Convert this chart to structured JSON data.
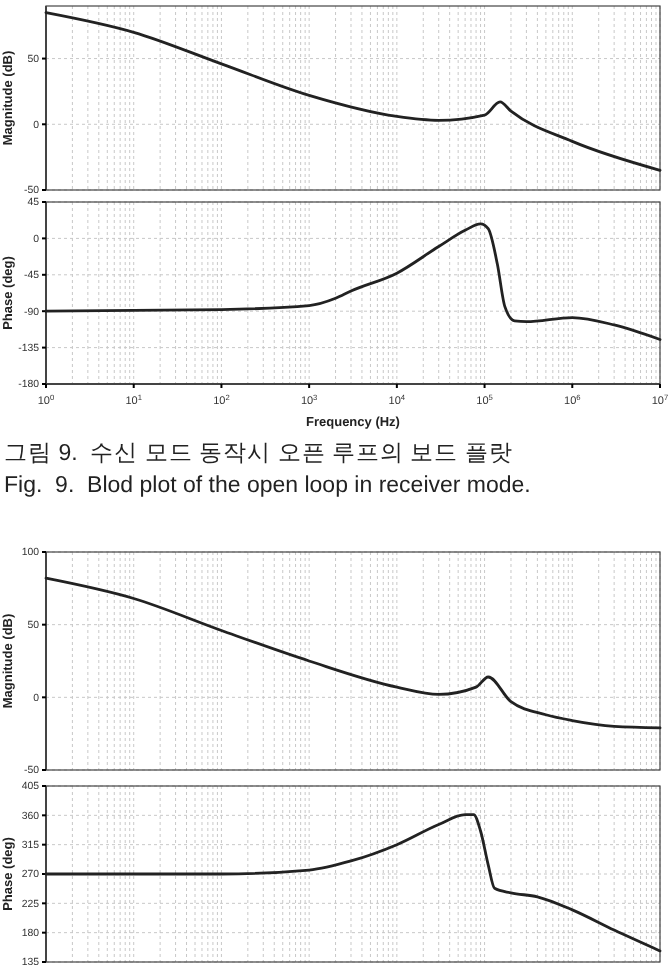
{
  "chart_data": [
    {
      "type": "line",
      "ylabel": "Magnitude (dB)",
      "x": [
        1,
        10,
        100,
        1000,
        10000,
        30000,
        100000,
        150000,
        200000,
        1000000,
        10000000
      ],
      "series": [
        {
          "color": "#222222",
          "values": [
            85,
            70,
            46,
            22,
            6,
            3,
            7,
            17,
            10,
            -13,
            -35
          ]
        }
      ],
      "xlim": [
        1,
        10000000
      ],
      "log": "x",
      "ylim": [
        -50,
        90
      ],
      "yticks": [
        -50,
        0,
        50
      ],
      "tick_labels": "y",
      "grid": true
    },
    {
      "type": "line",
      "ylabel": "Phase (deg)",
      "xlabel": "Frequency (Hz)",
      "x": [
        1,
        100,
        1000,
        2000,
        3000,
        10000,
        30000,
        60000,
        90000,
        110000,
        140000,
        170000,
        220000,
        300000,
        1000000,
        3000000,
        10000000
      ],
      "series": [
        {
          "color": "#222222",
          "values": [
            -90,
            -88,
            -83,
            -74,
            -65,
            -43,
            -10,
            10,
            18,
            12,
            -32,
            -84,
            -102,
            -103,
            -98,
            -107,
            -125
          ]
        }
      ],
      "xlim": [
        1,
        10000000
      ],
      "log": "x",
      "xticks": [
        {
          "value": 1,
          "label": "10$^{0}$"
        },
        {
          "value": 10,
          "label": "10$^{1}$"
        },
        {
          "value": 100,
          "label": "10$^{2}$"
        },
        {
          "value": 1000,
          "label": "10$^{3}$"
        },
        {
          "value": 10000,
          "label": "10$^{4}$"
        },
        {
          "value": 100000,
          "label": "10$^{5}$"
        },
        {
          "value": 1000000,
          "label": "10$^{6}$"
        },
        {
          "value": 10000000,
          "label": "10$^{7}$"
        }
      ],
      "ylim": [
        -180,
        45
      ],
      "yticks": [
        -180,
        -135,
        -90,
        -45,
        0,
        45
      ],
      "grid": true,
      "annotations": [
        "그림 9.  수신 모드 동작시 오픈 루프의 보드 플랏",
        "Fig.  9.  Blod plot of the open loop in receiver mode."
      ]
    },
    {
      "type": "line",
      "ylabel": "Magnitude (dB)",
      "x": [
        1,
        10,
        100,
        1000,
        10000,
        30000,
        80000,
        110000,
        200000,
        500000,
        1000000,
        3000000,
        10000000
      ],
      "series": [
        {
          "color": "#222222",
          "values": [
            82,
            68,
            46,
            25,
            7,
            2,
            7,
            14,
            -3,
            -12,
            -16,
            -20,
            -21
          ]
        }
      ],
      "xlim": [
        1,
        10000000
      ],
      "log": "x",
      "ylim": [
        -50,
        100
      ],
      "yticks": [
        -50,
        0,
        50,
        100
      ],
      "tick_labels": "y",
      "grid": true
    },
    {
      "type": "line",
      "ylabel": "Phase (deg)",
      "x": [
        1,
        100,
        1000,
        3000,
        10000,
        30000,
        60000,
        75000,
        90000,
        110000,
        130000,
        200000,
        400000,
        1000000,
        3000000,
        10000000
      ],
      "series": [
        {
          "color": "#222222",
          "values": [
            270,
            270,
            276,
            290,
            315,
            346,
            361,
            361,
            336,
            284,
            248,
            241,
            235,
            215,
            184,
            152
          ]
        }
      ],
      "xlim": [
        1,
        10000000
      ],
      "log": "x",
      "ylim": [
        135,
        405
      ],
      "yticks": [
        135,
        180,
        225,
        270,
        315,
        360,
        405
      ],
      "tick_labels": "y",
      "grid": true
    }
  ]
}
